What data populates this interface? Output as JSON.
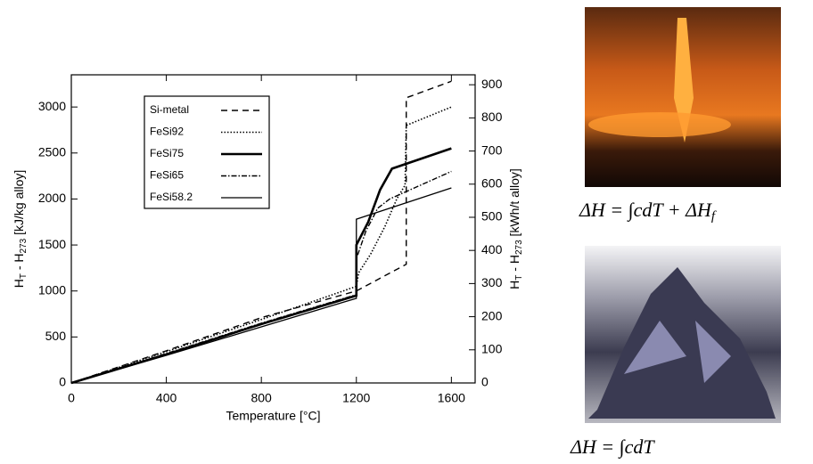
{
  "chart_data": {
    "type": "line",
    "x_label": "Temperature [°C]",
    "y_label": [
      "H",
      "T",
      " - H",
      "273",
      "  [kJ/kg alloy]"
    ],
    "y2_label": [
      "H",
      "T",
      " - H",
      "273",
      "  [kWh/t alloy]"
    ],
    "xlim": [
      0,
      1700
    ],
    "ylim": [
      0,
      3350
    ],
    "y2lim": [
      0,
      930
    ],
    "xticks": [
      0,
      400,
      800,
      1200,
      1600
    ],
    "yticks": [
      0,
      500,
      1000,
      1500,
      2000,
      2500,
      3000
    ],
    "y2ticks": [
      0,
      100,
      200,
      300,
      400,
      500,
      600,
      700,
      800,
      900
    ],
    "series": [
      {
        "name": "Si-metal",
        "color": "#000000",
        "dash": "7,5",
        "width": 1.4,
        "x": [
          0,
          400,
          800,
          1200,
          1410,
          1410,
          1600
        ],
        "values": [
          0,
          350,
          710,
          1000,
          1290,
          3100,
          3280
        ]
      },
      {
        "name": "FeSi92",
        "color": "#000000",
        "dash": "1.5,2",
        "width": 1.6,
        "x": [
          0,
          400,
          800,
          1200,
          1210,
          1260,
          1320,
          1370,
          1405,
          1410,
          1600
        ],
        "values": [
          0,
          340,
          690,
          1050,
          1200,
          1400,
          1700,
          2000,
          2150,
          2800,
          3000
        ]
      },
      {
        "name": "FeSi75",
        "color": "#000000",
        "dash": "none",
        "width": 2.6,
        "x": [
          0,
          400,
          800,
          1200,
          1200,
          1250,
          1300,
          1350,
          1600
        ],
        "values": [
          0,
          310,
          640,
          950,
          1500,
          1750,
          2100,
          2330,
          2550
        ]
      },
      {
        "name": "FeSi65",
        "color": "#000000",
        "dash": "6,2,1.5,2",
        "width": 1.4,
        "x": [
          0,
          400,
          800,
          1200,
          1200,
          1240,
          1290,
          1340,
          1600
        ],
        "values": [
          0,
          320,
          650,
          960,
          1350,
          1650,
          1900,
          2000,
          2300
        ]
      },
      {
        "name": "FeSi58.2",
        "color": "#000000",
        "dash": "none",
        "width": 1.3,
        "x": [
          0,
          400,
          800,
          1200,
          1200,
          1600
        ],
        "values": [
          0,
          300,
          610,
          920,
          1780,
          2120
        ]
      }
    ]
  },
  "equations": [
    {
      "main": "ΔH = ∫cdT + ΔH",
      "sub": "f"
    },
    {
      "main": "ΔH = ∫cdT"
    }
  ]
}
